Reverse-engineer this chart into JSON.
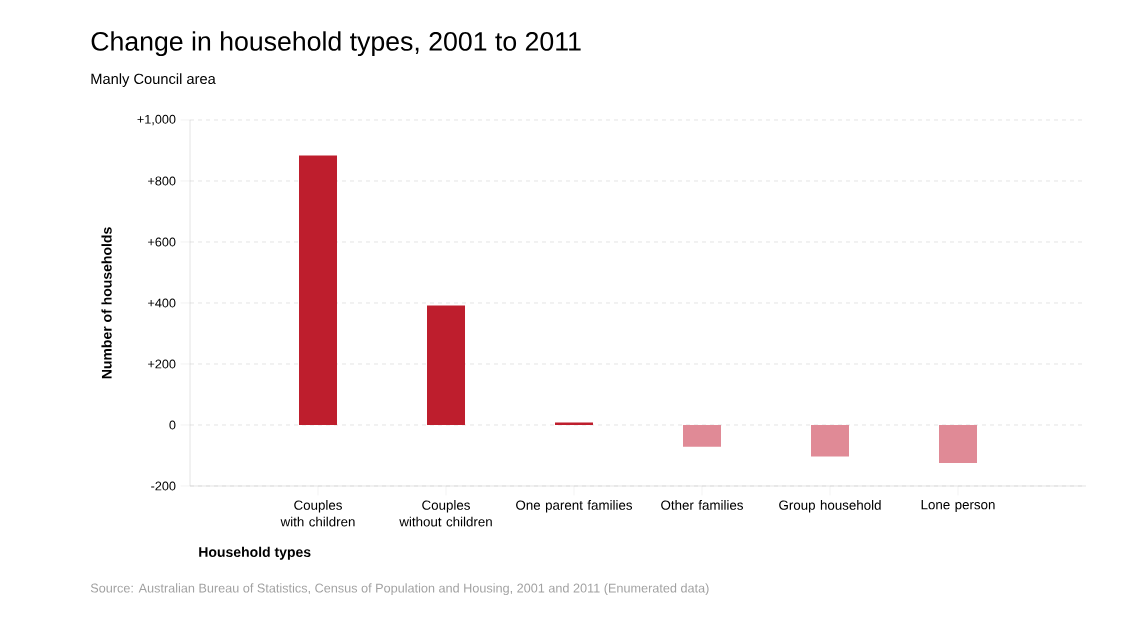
{
  "chart_data": {
    "type": "bar",
    "title": "Change in household types, 2001 to 2011",
    "subtitle": "Manly Council area",
    "xlabel": "Household types",
    "ylabel": "Number of households",
    "categories": [
      "Couples with children",
      "Couples without children",
      "One parent families",
      "Other families",
      "Group household",
      "Lone person"
    ],
    "values": [
      884,
      392,
      8,
      -71,
      -103,
      -125
    ],
    "colors": [
      "#be1e2d",
      "#be1e2d",
      "#be1e2d",
      "#e08a96",
      "#e08a96",
      "#e08a96"
    ],
    "ylim": [
      -200,
      1000
    ],
    "yticks": [
      -200,
      0,
      {
        "value": 200,
        "label": "+200"
      },
      {
        "value": 400,
        "label": "+400"
      },
      {
        "value": 600,
        "label": "+600"
      },
      {
        "value": 800,
        "label": "+800"
      },
      {
        "value": 1000,
        "label": "+1,000"
      }
    ],
    "grid": "y",
    "annotations": [
      "Source: Australian Bureau of Statistics, Census of Population and Housing, 2001 and 2011 (Enumerated data)"
    ]
  }
}
